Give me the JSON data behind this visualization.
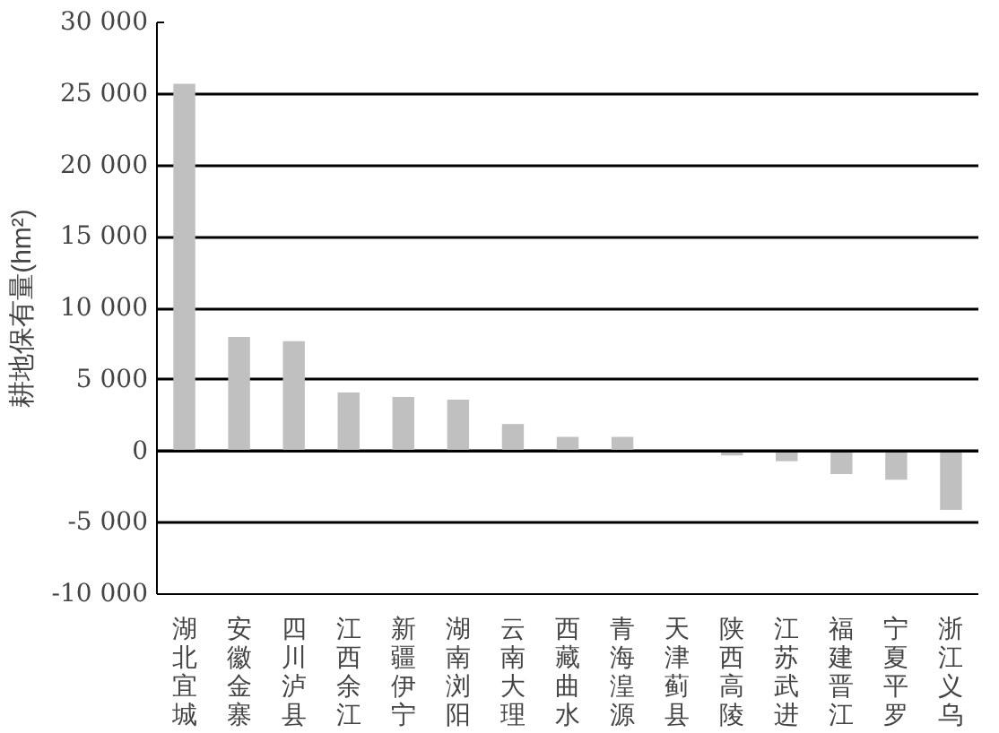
{
  "chart_data": {
    "type": "bar",
    "ylabel": "耕地保有量(hm²)",
    "categories": [
      "湖北宜城",
      "安徽金寨",
      "四川泸县",
      "江西余江",
      "新疆伊宁",
      "湖南浏阳",
      "云南大理",
      "西藏曲水",
      "青海湟源",
      "天津蓟县",
      "陕西高陵",
      "江苏武进",
      "福建晋江",
      "宁夏平罗",
      "浙江义乌"
    ],
    "values": [
      25700,
      8000,
      7700,
      4100,
      3800,
      3600,
      1900,
      1000,
      1000,
      0,
      -300,
      -700,
      -1600,
      -2000,
      -4100
    ],
    "color": "#c0c0c0",
    "ylim": [
      -10000,
      30000
    ],
    "yticks": [
      {
        "value": -10000,
        "label": "-10 000"
      },
      {
        "value": -5000,
        "label": "-5 000"
      },
      0,
      {
        "value": 5000,
        "label": "5 000"
      },
      {
        "value": 10000,
        "label": "10 000"
      },
      {
        "value": 15000,
        "label": "15 000"
      },
      {
        "value": 20000,
        "label": "20 000"
      },
      {
        "value": 25000,
        "label": "25 000"
      },
      {
        "value": 30000,
        "label": "30 000"
      }
    ],
    "grid": "y"
  }
}
